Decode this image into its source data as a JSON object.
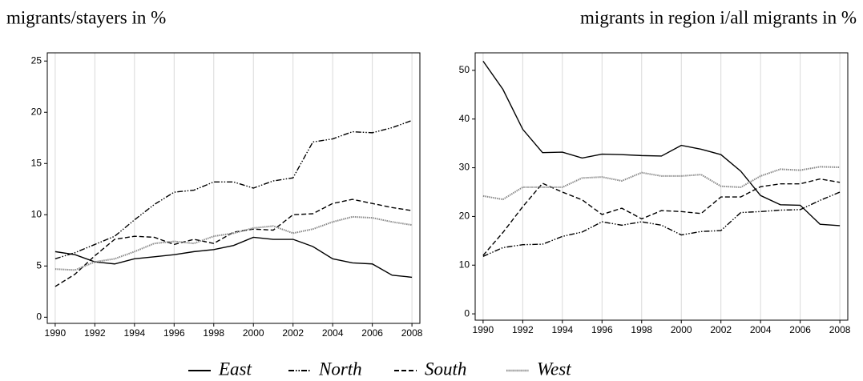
{
  "chart_data": [
    {
      "type": "line",
      "title": "migrants/stayers in %",
      "x": [
        1990,
        1991,
        1992,
        1993,
        1994,
        1995,
        1996,
        1997,
        1998,
        1999,
        2000,
        2001,
        2002,
        2003,
        2004,
        2005,
        2006,
        2007,
        2008
      ],
      "xlim": [
        1989.6,
        2008.4
      ],
      "xticks": [
        1990,
        1992,
        1994,
        1996,
        1998,
        2000,
        2002,
        2004,
        2006,
        2008
      ],
      "ylim": [
        -0.6,
        25.8
      ],
      "yticks": [
        0,
        5,
        10,
        15,
        20,
        25
      ],
      "grid": "x",
      "series": [
        {
          "name": "East",
          "color": "#000000",
          "dash": "none",
          "values": [
            6.4,
            6.1,
            5.4,
            5.2,
            5.7,
            5.9,
            6.1,
            6.4,
            6.6,
            7.0,
            7.8,
            7.6,
            7.6,
            6.9,
            5.7,
            5.3,
            5.2,
            4.1,
            3.9
          ]
        },
        {
          "name": "North",
          "color": "#000000",
          "dash": "7,2,1.5,2,1.5,2",
          "values": [
            5.7,
            6.3,
            7.1,
            7.9,
            9.5,
            11.0,
            12.2,
            12.4,
            13.2,
            13.2,
            12.6,
            13.3,
            13.6,
            17.1,
            17.4,
            18.1,
            18.0,
            18.5,
            19.2
          ]
        },
        {
          "name": "South",
          "color": "#000000",
          "dash": "6,3",
          "values": [
            3.0,
            4.2,
            6.0,
            7.6,
            7.9,
            7.8,
            7.1,
            7.6,
            7.2,
            8.3,
            8.6,
            8.5,
            10.0,
            10.1,
            11.1,
            11.5,
            11.1,
            10.7,
            10.4
          ]
        },
        {
          "name": "West",
          "color": "#8a8a8a",
          "dash": "1.5,1",
          "values": [
            4.7,
            4.6,
            5.4,
            5.7,
            6.4,
            7.2,
            7.4,
            7.2,
            7.9,
            8.2,
            8.7,
            8.9,
            8.2,
            8.6,
            9.3,
            9.8,
            9.7,
            9.3,
            9.0
          ]
        }
      ]
    },
    {
      "type": "line",
      "title": "migrants in region i/all migrants in %",
      "x": [
        1990,
        1991,
        1992,
        1993,
        1994,
        1995,
        1996,
        1997,
        1998,
        1999,
        2000,
        2001,
        2002,
        2003,
        2004,
        2005,
        2006,
        2007,
        2008
      ],
      "xlim": [
        1989.6,
        2008.4
      ],
      "xticks": [
        1990,
        1992,
        1994,
        1996,
        1998,
        2000,
        2002,
        2004,
        2006,
        2008
      ],
      "ylim": [
        -1.3,
        53.6
      ],
      "yticks": [
        0,
        10,
        20,
        30,
        40,
        50
      ],
      "grid": "x",
      "series": [
        {
          "name": "East",
          "color": "#000000",
          "dash": "none",
          "values": [
            51.9,
            46.1,
            37.9,
            33.1,
            33.2,
            32.0,
            32.8,
            32.7,
            32.5,
            32.4,
            34.6,
            33.8,
            32.7,
            29.3,
            24.3,
            22.4,
            22.3,
            18.4,
            18.1
          ]
        },
        {
          "name": "North",
          "color": "#000000",
          "dash": "7,2,1.5,2,1.5,2",
          "values": [
            11.8,
            13.6,
            14.2,
            14.3,
            15.9,
            16.8,
            18.9,
            18.2,
            18.9,
            18.2,
            16.2,
            16.9,
            17.1,
            20.8,
            21.0,
            21.3,
            21.4,
            23.3,
            25.0
          ]
        },
        {
          "name": "South",
          "color": "#000000",
          "dash": "6,3",
          "values": [
            12.0,
            16.7,
            22.0,
            26.8,
            25.0,
            23.4,
            20.4,
            21.7,
            19.5,
            21.2,
            21.0,
            20.6,
            24.0,
            24.0,
            26.1,
            26.7,
            26.7,
            27.7,
            27.0
          ]
        },
        {
          "name": "West",
          "color": "#8a8a8a",
          "dash": "1.5,1",
          "values": [
            24.2,
            23.5,
            26.0,
            26.0,
            26.0,
            27.9,
            28.1,
            27.3,
            29.0,
            28.3,
            28.3,
            28.6,
            26.2,
            26.0,
            28.3,
            29.7,
            29.5,
            30.2,
            30.1
          ]
        }
      ]
    }
  ]
}
